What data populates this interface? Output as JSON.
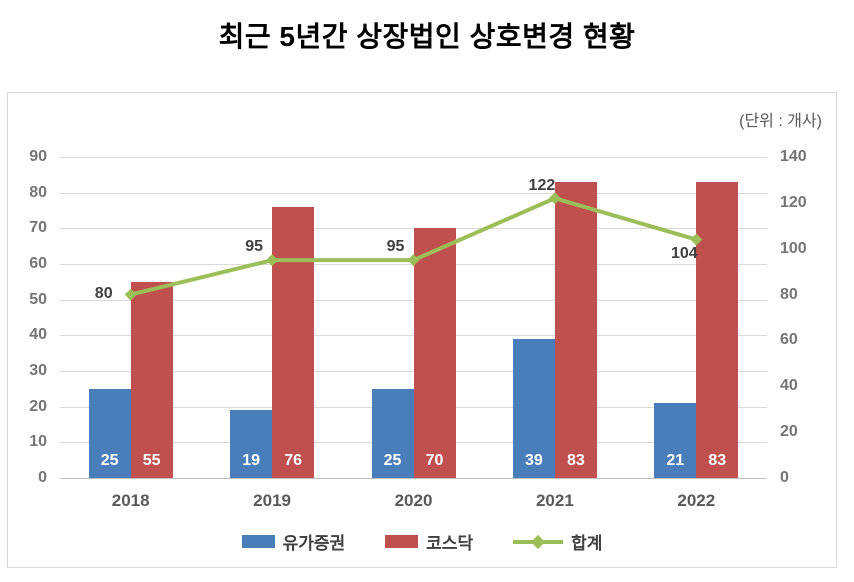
{
  "title": "최근 5년간 상장법인 상호변경 현황",
  "unit_label": "(단위 : 개사)",
  "colors": {
    "kospi": "#4A7EBB",
    "kosdaq": "#C0504D",
    "total": "#9BBE59",
    "grid": "#D9D9D9",
    "baseline": "#BFBFBF",
    "tick_text": "#757575",
    "category_text": "#595959",
    "data_label_text": "#404040",
    "bar_label_text": "#FFFFFF",
    "panel_border": "#D9D9D9"
  },
  "chart_data": {
    "type": "combo",
    "categories": [
      "2018",
      "2019",
      "2020",
      "2021",
      "2022"
    ],
    "series": [
      {
        "key": "kospi",
        "name": "유가증권",
        "type": "bar",
        "axis": "left",
        "values": [
          25,
          19,
          25,
          39,
          21
        ]
      },
      {
        "key": "kosdaq",
        "name": "코스닥",
        "type": "bar",
        "axis": "left",
        "values": [
          55,
          76,
          70,
          83,
          83
        ]
      },
      {
        "key": "total",
        "name": "합계",
        "type": "line",
        "axis": "right",
        "values": [
          80,
          95,
          95,
          122,
          104
        ]
      }
    ],
    "left_axis": {
      "min": 0,
      "max": 90,
      "step": 10
    },
    "right_axis": {
      "min": 0,
      "max": 140,
      "step": 20
    },
    "grid": true,
    "data_labels": true,
    "legend_position": "bottom"
  }
}
